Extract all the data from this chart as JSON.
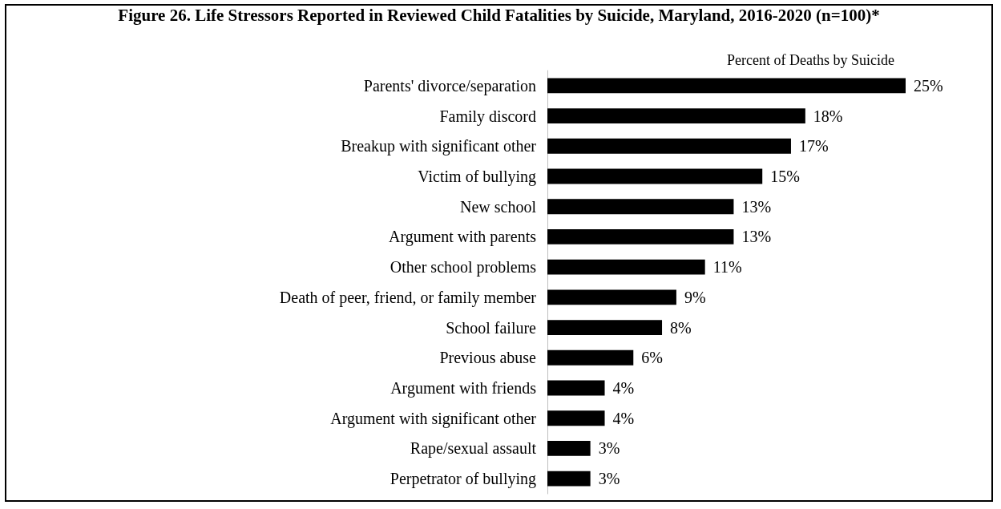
{
  "chart_data": {
    "type": "bar",
    "orientation": "horizontal",
    "title": "Figure 26. Life Stressors Reported in Reviewed Child Fatalities by Suicide, Maryland, 2016-2020 (n=100)*",
    "xlabel": "Percent of Deaths by Suicide",
    "categories": [
      "Parents' divorce/separation",
      "Family discord",
      "Breakup with significant other",
      "Victim of bullying",
      "New school",
      "Argument with parents",
      "Other school problems",
      "Death of peer, friend, or family member",
      "School failure",
      "Previous abuse",
      "Argument with friends",
      "Argument with significant other",
      "Rape/sexual assault",
      "Perpetrator of bullying"
    ],
    "values": [
      25,
      18,
      17,
      15,
      13,
      13,
      11,
      9,
      8,
      6,
      4,
      4,
      3,
      3
    ],
    "value_labels": [
      "25%",
      "18%",
      "17%",
      "15%",
      "13%",
      "13%",
      "11%",
      "9%",
      "8%",
      "6%",
      "4%",
      "4%",
      "3%",
      "3%"
    ],
    "color": "#000000",
    "grid": false
  }
}
